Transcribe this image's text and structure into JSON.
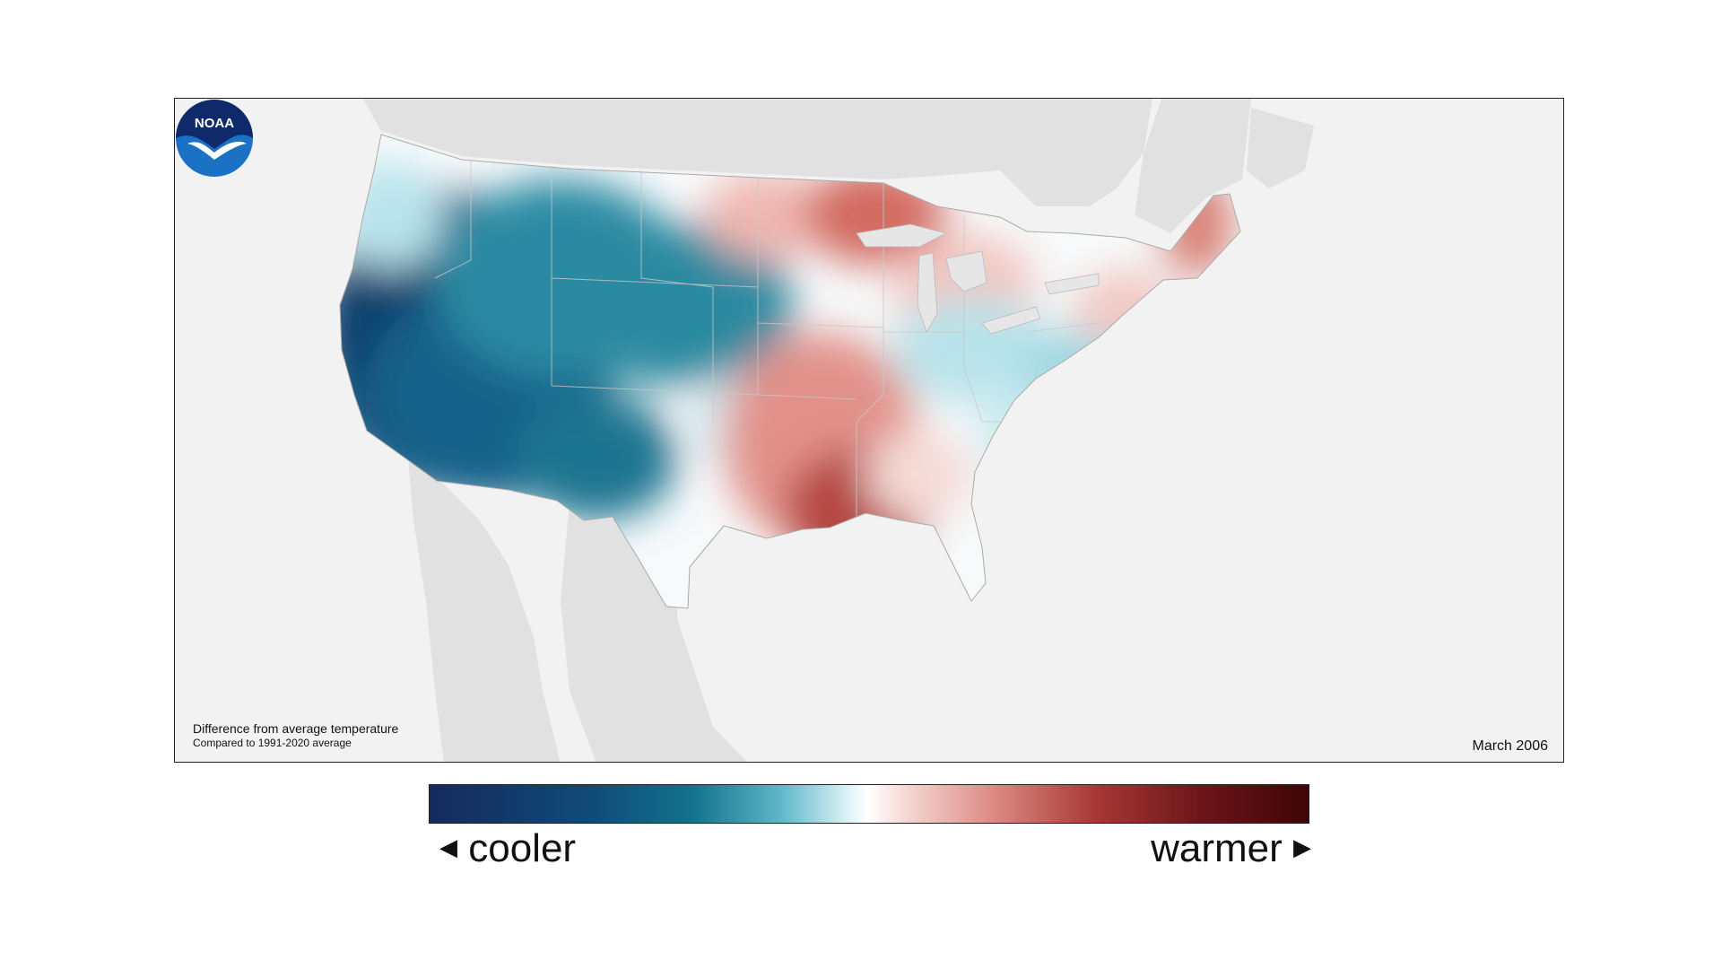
{
  "map": {
    "caption_title": "Difference from average temperature",
    "caption_subtitle": "Compared to 1991-2020 average",
    "period": "March 2006",
    "logo_text": "NOAA",
    "anomaly_regions": [
      {
        "region": "Pacific coast / Great Basin",
        "anomaly": "cooler",
        "color": "#0b3f6c"
      },
      {
        "region": "Northern Rockies / Plains",
        "anomaly": "cooler",
        "color": "#2d8ea3"
      },
      {
        "region": "Texas / Southern Plains",
        "anomaly": "warmer",
        "color": "#b5453f"
      },
      {
        "region": "Upper Midwest",
        "anomaly": "warmer",
        "color": "#d36a60"
      },
      {
        "region": "Ohio Valley / Mid-Atlantic",
        "anomaly": "slightly cooler",
        "color": "#b8e3ea"
      },
      {
        "region": "Maine",
        "anomaly": "warmer",
        "color": "#d98178"
      }
    ]
  },
  "legend": {
    "left_label": "cooler",
    "right_label": "warmer",
    "left_arrow": "◀",
    "right_arrow": "▶",
    "colors": [
      "#162a5c",
      "#13728c",
      "#ffffff",
      "#a73634",
      "#3e0508"
    ]
  }
}
